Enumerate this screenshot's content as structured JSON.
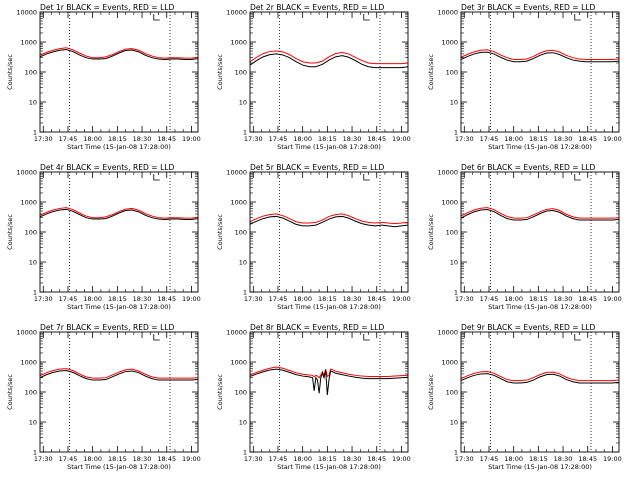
{
  "common": {
    "yticks": [
      "1",
      "10",
      "100",
      "1000",
      "10000"
    ],
    "xticks": [
      "17:30",
      "17:45",
      "18:00",
      "18:15",
      "18:30",
      "18:45",
      "19:00"
    ],
    "ylabel": "Counts/sec",
    "xlabel": "Start Time (15-Jan-08 17:28:00)",
    "xlabel_alt": "Start Time (15-Jan-08 17:28:00)",
    "colors": {
      "events": "#000000",
      "lld": "#ff0000"
    }
  },
  "chart_data": [
    {
      "type": "line",
      "title": "Det 1r BLACK = Events, RED = LLD",
      "xlabel": "Start Time (15-Jan-08 17:28:00)",
      "ylabel": "Counts/sec",
      "yscale": "log",
      "ylim": [
        1,
        10000
      ],
      "xlim": [
        "17:28",
        "19:04"
      ],
      "vlines": [
        "17:46",
        "18:47"
      ],
      "x": [
        "17:28",
        "17:32",
        "17:36",
        "17:40",
        "17:44",
        "17:48",
        "17:52",
        "17:56",
        "18:00",
        "18:04",
        "18:08",
        "18:12",
        "18:16",
        "18:20",
        "18:24",
        "18:28",
        "18:32",
        "18:36",
        "18:40",
        "18:44",
        "18:48",
        "18:52",
        "18:56",
        "19:00",
        "19:04"
      ],
      "series": [
        {
          "name": "Events",
          "values": [
            320,
            400,
            470,
            530,
            560,
            480,
            370,
            300,
            270,
            270,
            280,
            340,
            430,
            520,
            540,
            470,
            360,
            300,
            270,
            260,
            270,
            270,
            260,
            260,
            280
          ]
        },
        {
          "name": "LLD",
          "values": [
            360,
            450,
            530,
            600,
            640,
            550,
            430,
            340,
            300,
            300,
            320,
            380,
            480,
            580,
            600,
            530,
            410,
            340,
            300,
            290,
            300,
            300,
            290,
            290,
            310
          ]
        }
      ]
    },
    {
      "type": "line",
      "title": "Det 2r BLACK = Events, RED = LLD",
      "xlabel": "Start Time (15-Jan-08 17:28:00)",
      "ylabel": "Counts/sec",
      "yscale": "log",
      "ylim": [
        1,
        10000
      ],
      "xlim": [
        "17:28",
        "19:04"
      ],
      "vlines": [
        "17:46",
        "18:47"
      ],
      "x": [
        "17:28",
        "17:32",
        "17:36",
        "17:40",
        "17:44",
        "17:48",
        "17:52",
        "17:56",
        "18:00",
        "18:04",
        "18:08",
        "18:12",
        "18:16",
        "18:20",
        "18:24",
        "18:28",
        "18:32",
        "18:36",
        "18:40",
        "18:44",
        "18:48",
        "18:52",
        "18:56",
        "19:00",
        "19:04"
      ],
      "series": [
        {
          "name": "Events",
          "values": [
            170,
            240,
            320,
            380,
            400,
            370,
            300,
            220,
            170,
            150,
            150,
            180,
            250,
            320,
            350,
            310,
            240,
            180,
            150,
            140,
            140,
            140,
            140,
            140,
            150
          ]
        },
        {
          "name": "LLD",
          "values": [
            220,
            310,
            410,
            480,
            500,
            470,
            380,
            280,
            220,
            200,
            200,
            230,
            320,
            410,
            450,
            400,
            310,
            240,
            200,
            190,
            190,
            190,
            190,
            190,
            200
          ]
        }
      ]
    },
    {
      "type": "line",
      "title": "Det 3r BLACK = Events, RED = LLD",
      "xlabel": "Start Time (15-Jan-08 17:28:00)",
      "ylabel": "Counts/sec",
      "yscale": "log",
      "ylim": [
        1,
        10000
      ],
      "xlim": [
        "17:28",
        "19:04"
      ],
      "vlines": [
        "17:46",
        "18:47"
      ],
      "x": [
        "17:28",
        "17:32",
        "17:36",
        "17:40",
        "17:44",
        "17:48",
        "17:52",
        "17:56",
        "18:00",
        "18:04",
        "18:08",
        "18:12",
        "18:16",
        "18:20",
        "18:24",
        "18:28",
        "18:32",
        "18:36",
        "18:40",
        "18:44",
        "18:48",
        "18:52",
        "18:56",
        "19:00",
        "19:04"
      ],
      "series": [
        {
          "name": "Events",
          "values": [
            260,
            330,
            400,
            450,
            460,
            400,
            310,
            250,
            220,
            220,
            230,
            280,
            360,
            430,
            440,
            380,
            300,
            250,
            230,
            220,
            220,
            220,
            220,
            220,
            230
          ]
        },
        {
          "name": "LLD",
          "values": [
            310,
            390,
            470,
            530,
            550,
            480,
            370,
            300,
            260,
            260,
            270,
            330,
            430,
            510,
            530,
            460,
            360,
            300,
            270,
            260,
            260,
            260,
            260,
            260,
            270
          ]
        }
      ]
    },
    {
      "type": "line",
      "title": "Det 4r BLACK = Events, RED = LLD",
      "xlabel": "Start Time (15-Jan-08 17:28:00)",
      "ylabel": "Counts/sec",
      "yscale": "log",
      "ylim": [
        1,
        10000
      ],
      "xlim": [
        "17:28",
        "19:04"
      ],
      "vlines": [
        "17:46",
        "18:47"
      ],
      "x": [
        "17:28",
        "17:32",
        "17:36",
        "17:40",
        "17:44",
        "17:48",
        "17:52",
        "17:56",
        "18:00",
        "18:04",
        "18:08",
        "18:12",
        "18:16",
        "18:20",
        "18:24",
        "18:28",
        "18:32",
        "18:36",
        "18:40",
        "18:44",
        "18:48",
        "18:52",
        "18:56",
        "19:00",
        "19:04"
      ],
      "series": [
        {
          "name": "Events",
          "values": [
            320,
            400,
            480,
            540,
            570,
            490,
            380,
            300,
            270,
            270,
            280,
            340,
            430,
            520,
            540,
            470,
            360,
            300,
            270,
            260,
            270,
            270,
            260,
            260,
            280
          ]
        },
        {
          "name": "LLD",
          "values": [
            360,
            450,
            540,
            610,
            650,
            560,
            430,
            340,
            300,
            300,
            320,
            380,
            480,
            580,
            610,
            530,
            410,
            340,
            300,
            290,
            300,
            300,
            290,
            290,
            310
          ]
        }
      ]
    },
    {
      "type": "line",
      "title": "Det 5r BLACK = Events, RED = LLD",
      "xlabel": "Start Time (15-Jan-08 17:28:00)",
      "ylabel": "Counts/sec",
      "yscale": "log",
      "ylim": [
        1,
        10000
      ],
      "xlim": [
        "17:28",
        "19:04"
      ],
      "vlines": [
        "17:46",
        "18:47"
      ],
      "x": [
        "17:28",
        "17:32",
        "17:36",
        "17:40",
        "17:44",
        "17:48",
        "17:52",
        "17:56",
        "18:00",
        "18:04",
        "18:08",
        "18:12",
        "18:16",
        "18:20",
        "18:24",
        "18:28",
        "18:32",
        "18:36",
        "18:40",
        "18:44",
        "18:48",
        "18:52",
        "18:56",
        "19:00",
        "19:04"
      ],
      "series": [
        {
          "name": "Events",
          "values": [
            180,
            230,
            280,
            320,
            330,
            290,
            230,
            180,
            160,
            160,
            170,
            210,
            270,
            320,
            330,
            290,
            230,
            190,
            170,
            160,
            170,
            160,
            150,
            160,
            170
          ]
        },
        {
          "name": "LLD",
          "values": [
            220,
            280,
            340,
            380,
            400,
            350,
            280,
            220,
            200,
            200,
            210,
            250,
            330,
            380,
            400,
            350,
            280,
            230,
            210,
            200,
            210,
            200,
            190,
            200,
            210
          ]
        }
      ]
    },
    {
      "type": "line",
      "title": "Det 6r BLACK = Events, RED = LLD",
      "xlabel": "Start Time (15-Jan-08 17:28:00)",
      "ylabel": "Counts/sec",
      "yscale": "log",
      "ylim": [
        1,
        10000
      ],
      "xlim": [
        "17:28",
        "19:04"
      ],
      "vlines": [
        "17:46",
        "18:47"
      ],
      "x": [
        "17:28",
        "17:32",
        "17:36",
        "17:40",
        "17:44",
        "17:48",
        "17:52",
        "17:56",
        "18:00",
        "18:04",
        "18:08",
        "18:12",
        "18:16",
        "18:20",
        "18:24",
        "18:28",
        "18:32",
        "18:36",
        "18:40",
        "18:44",
        "18:48",
        "18:52",
        "18:56",
        "19:00",
        "19:04"
      ],
      "series": [
        {
          "name": "Events",
          "values": [
            290,
            380,
            470,
            540,
            560,
            480,
            360,
            280,
            250,
            250,
            260,
            320,
            410,
            500,
            520,
            450,
            340,
            280,
            250,
            250,
            250,
            250,
            250,
            250,
            260
          ]
        },
        {
          "name": "LLD",
          "values": [
            340,
            440,
            540,
            620,
            650,
            560,
            420,
            330,
            290,
            290,
            300,
            370,
            470,
            570,
            600,
            520,
            390,
            320,
            290,
            290,
            290,
            290,
            290,
            290,
            300
          ]
        }
      ]
    },
    {
      "type": "line",
      "title": "Det 7r BLACK = Events, RED = LLD",
      "xlabel": "Start Time (15-Jan-08 17:28:00)",
      "ylabel": "Counts/sec",
      "yscale": "log",
      "ylim": [
        1,
        10000
      ],
      "xlim": [
        "17:28",
        "19:04"
      ],
      "vlines": [
        "17:46",
        "18:47"
      ],
      "x": [
        "17:28",
        "17:32",
        "17:36",
        "17:40",
        "17:44",
        "17:48",
        "17:52",
        "17:56",
        "18:00",
        "18:04",
        "18:08",
        "18:12",
        "18:16",
        "18:20",
        "18:24",
        "18:28",
        "18:32",
        "18:36",
        "18:40",
        "18:44",
        "18:48",
        "18:52",
        "18:56",
        "19:00",
        "19:04"
      ],
      "series": [
        {
          "name": "Events",
          "values": [
            300,
            380,
            450,
            500,
            520,
            450,
            350,
            280,
            250,
            250,
            260,
            320,
            400,
            480,
            500,
            440,
            340,
            280,
            250,
            250,
            250,
            250,
            250,
            250,
            260
          ]
        },
        {
          "name": "LLD",
          "values": [
            350,
            440,
            520,
            580,
            600,
            520,
            400,
            320,
            290,
            290,
            300,
            370,
            460,
            550,
            580,
            500,
            390,
            320,
            290,
            290,
            290,
            290,
            290,
            290,
            300
          ]
        }
      ]
    },
    {
      "type": "line",
      "title": "Det 8r BLACK = Events, RED = LLD",
      "xlabel": "Start Time (15-Jan-08 17:28:00)",
      "ylabel": "Counts/sec",
      "yscale": "log",
      "ylim": [
        1,
        10000
      ],
      "xlim": [
        "17:28",
        "19:04"
      ],
      "vlines": [
        "17:46",
        "18:47"
      ],
      "x": [
        "17:28",
        "17:32",
        "17:36",
        "17:40",
        "17:44",
        "17:48",
        "17:52",
        "17:56",
        "18:00",
        "18:04",
        "18:06",
        "18:07",
        "18:08",
        "18:09",
        "18:10",
        "18:11",
        "18:12",
        "18:13",
        "18:14",
        "18:15",
        "18:16",
        "18:17",
        "18:18",
        "18:20",
        "18:24",
        "18:28",
        "18:32",
        "18:36",
        "18:40",
        "18:44",
        "18:48",
        "18:52",
        "18:56",
        "19:00",
        "19:04"
      ],
      "series": [
        {
          "name": "Events",
          "values": [
            330,
            400,
            470,
            540,
            580,
            530,
            450,
            380,
            340,
            320,
            300,
            110,
            300,
            250,
            90,
            300,
            420,
            300,
            520,
            80,
            260,
            500,
            480,
            420,
            380,
            340,
            310,
            290,
            280,
            280,
            280,
            280,
            290,
            300,
            310
          ]
        },
        {
          "name": "LLD",
          "values": [
            370,
            450,
            530,
            620,
            680,
            620,
            520,
            440,
            390,
            370,
            360,
            320,
            360,
            340,
            300,
            360,
            480,
            360,
            580,
            330,
            360,
            580,
            560,
            490,
            440,
            390,
            360,
            340,
            330,
            330,
            330,
            330,
            340,
            350,
            360
          ]
        }
      ]
    },
    {
      "type": "line",
      "title": "Det 9r BLACK = Events, RED = LLD",
      "xlabel": "Start Time (15-Jan-08 17:28:00)",
      "ylabel": "Counts/sec",
      "yscale": "log",
      "ylim": [
        1,
        10000
      ],
      "xlim": [
        "17:28",
        "19:04"
      ],
      "vlines": [
        "17:46",
        "18:47"
      ],
      "x": [
        "17:28",
        "17:32",
        "17:36",
        "17:40",
        "17:44",
        "17:48",
        "17:52",
        "17:56",
        "18:00",
        "18:04",
        "18:08",
        "18:12",
        "18:16",
        "18:20",
        "18:24",
        "18:28",
        "18:32",
        "18:36",
        "18:40",
        "18:44",
        "18:48",
        "18:52",
        "18:56",
        "19:00",
        "19:04"
      ],
      "series": [
        {
          "name": "Events",
          "values": [
            240,
            300,
            360,
            400,
            410,
            360,
            280,
            220,
            200,
            200,
            210,
            250,
            320,
            380,
            390,
            340,
            260,
            220,
            200,
            200,
            200,
            200,
            200,
            200,
            210
          ]
        },
        {
          "name": "LLD",
          "values": [
            280,
            350,
            420,
            470,
            480,
            420,
            330,
            260,
            240,
            240,
            250,
            300,
            380,
            450,
            460,
            400,
            310,
            260,
            240,
            240,
            240,
            240,
            240,
            240,
            250
          ]
        }
      ]
    }
  ]
}
